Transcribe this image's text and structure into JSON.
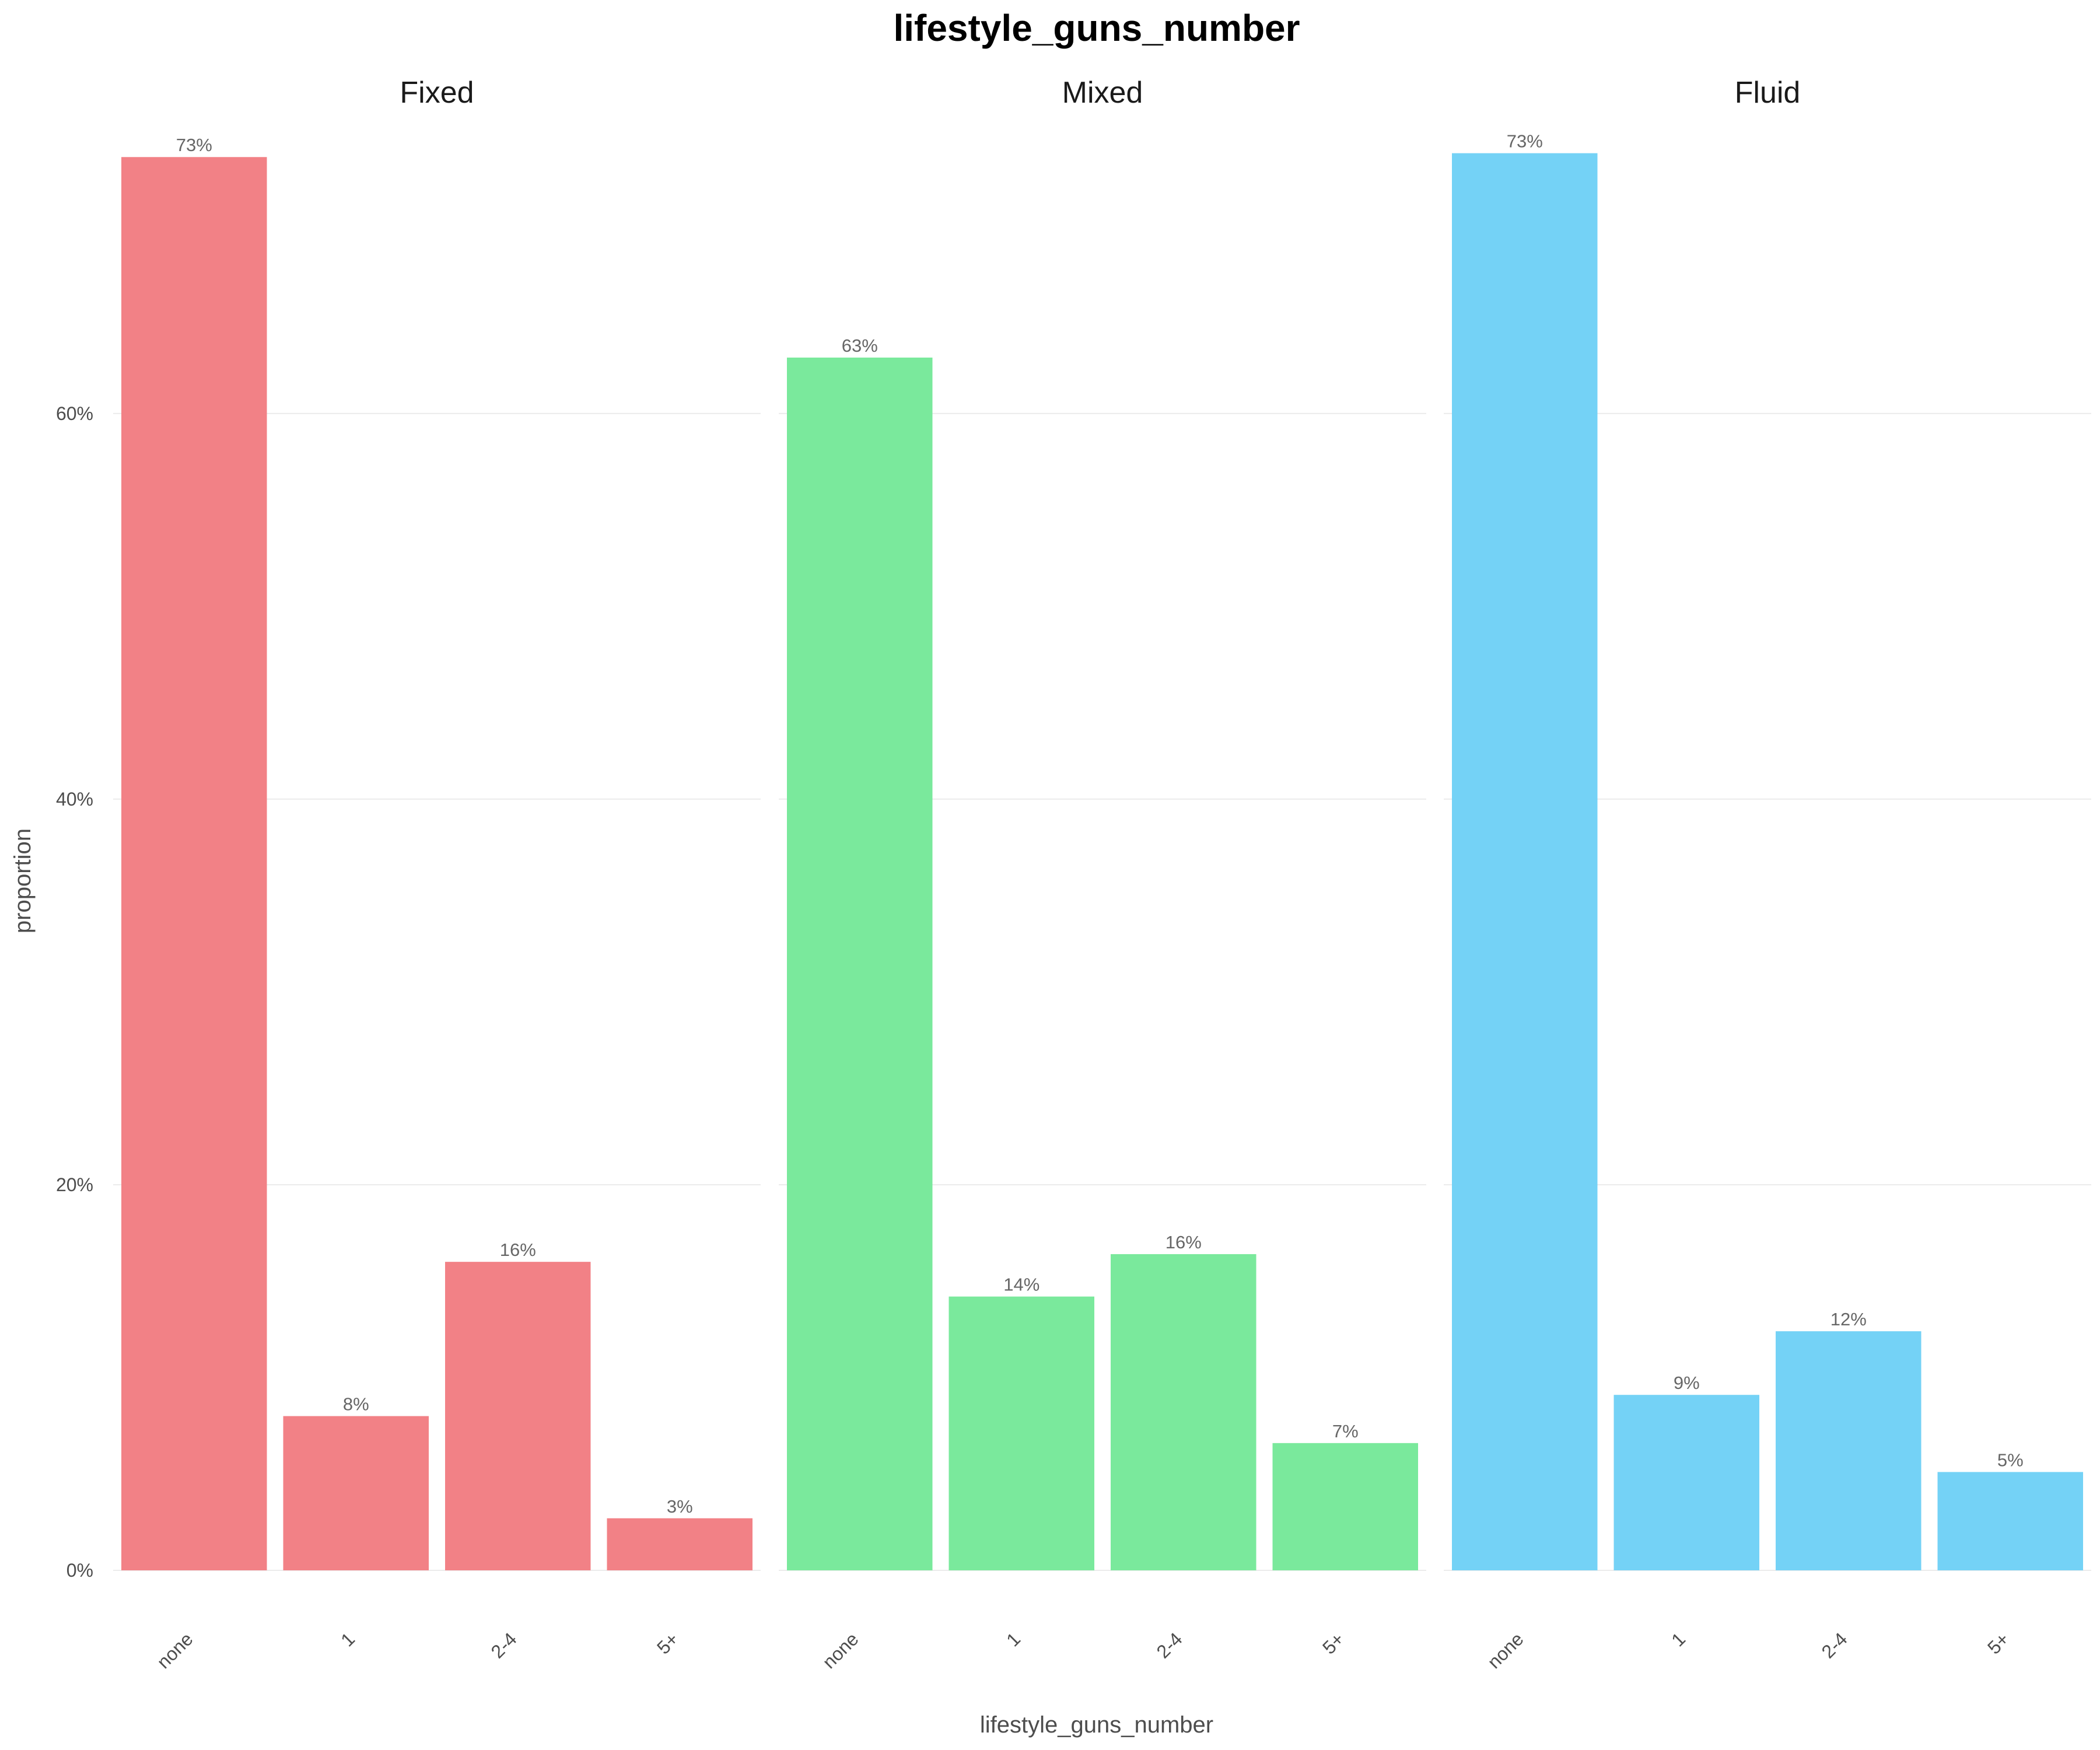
{
  "chart_data": {
    "type": "bar",
    "title": "lifestyle_guns_number",
    "xlabel": "lifestyle_guns_number",
    "ylabel": "proportion",
    "ylim": [
      0,
      0.76
    ],
    "yticks": [
      0,
      0.2,
      0.4,
      0.6
    ],
    "ytick_labels": [
      "0%",
      "20%",
      "40%",
      "60%"
    ],
    "grid": true,
    "categories": [
      "none",
      "1",
      "2-4",
      "5+"
    ],
    "facets": [
      {
        "name": "Fixed",
        "color": "#F28186",
        "values": [
          0.733,
          0.08,
          0.16,
          0.027
        ],
        "labels": [
          "73%",
          "8%",
          "16%",
          "3%"
        ]
      },
      {
        "name": "Mixed",
        "color": "#7AE99C",
        "values": [
          0.629,
          0.142,
          0.164,
          0.066
        ],
        "labels": [
          "63%",
          "14%",
          "16%",
          "7%"
        ]
      },
      {
        "name": "Fluid",
        "color": "#74D2F6",
        "values": [
          0.735,
          0.091,
          0.124,
          0.051
        ],
        "labels": [
          "73%",
          "9%",
          "12%",
          "5%"
        ]
      }
    ]
  }
}
